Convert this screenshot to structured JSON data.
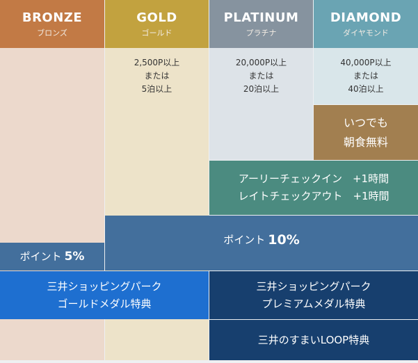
{
  "tiers": [
    {
      "name": "BRONZE",
      "kana": "ブロンズ",
      "header_color": "#c27a45",
      "body_color": "#ecd9cc"
    },
    {
      "name": "GOLD",
      "kana": "ゴールド",
      "header_color": "#c2a23f",
      "body_color": "#ede3c9",
      "condition": [
        "2,500P以上",
        "または",
        "5泊以上"
      ]
    },
    {
      "name": "PLATINUM",
      "kana": "プラチナ",
      "header_color": "#86939f",
      "body_color": "#dde3e8",
      "condition": [
        "20,000P以上",
        "または",
        "20泊以上"
      ]
    },
    {
      "name": "DIAMOND",
      "kana": "ダイヤモンド",
      "header_color": "#6aa4b3",
      "body_color": "#d9e6ea",
      "condition": [
        "40,000P以上",
        "または",
        "40泊以上"
      ]
    }
  ],
  "benefits": {
    "breakfast": {
      "lines": [
        "いつでも",
        "朝食無料"
      ],
      "color": "#a27f50"
    },
    "checkin": {
      "lines": [
        "アーリーチェックイン　+1時間",
        "レイトチェックアウト　+1時間"
      ],
      "color": "#4b8b80"
    },
    "points_bronze": {
      "label": "ポイント",
      "value": "5%",
      "color": "#436f9c"
    },
    "points_upper": {
      "label": "ポイント",
      "value": "10%",
      "color": "#436f9c"
    },
    "shopping_gold": {
      "lines": [
        "三井ショッピングパーク",
        "ゴールドメダル特典"
      ],
      "color": "#1e6fd0"
    },
    "shopping_premium": {
      "lines": [
        "三井ショッピングパーク",
        "プレミアムメダル特典"
      ],
      "color": "#173f6e"
    },
    "loop": {
      "label": "三井のすまいLOOP特典",
      "color": "#173f6e"
    }
  }
}
